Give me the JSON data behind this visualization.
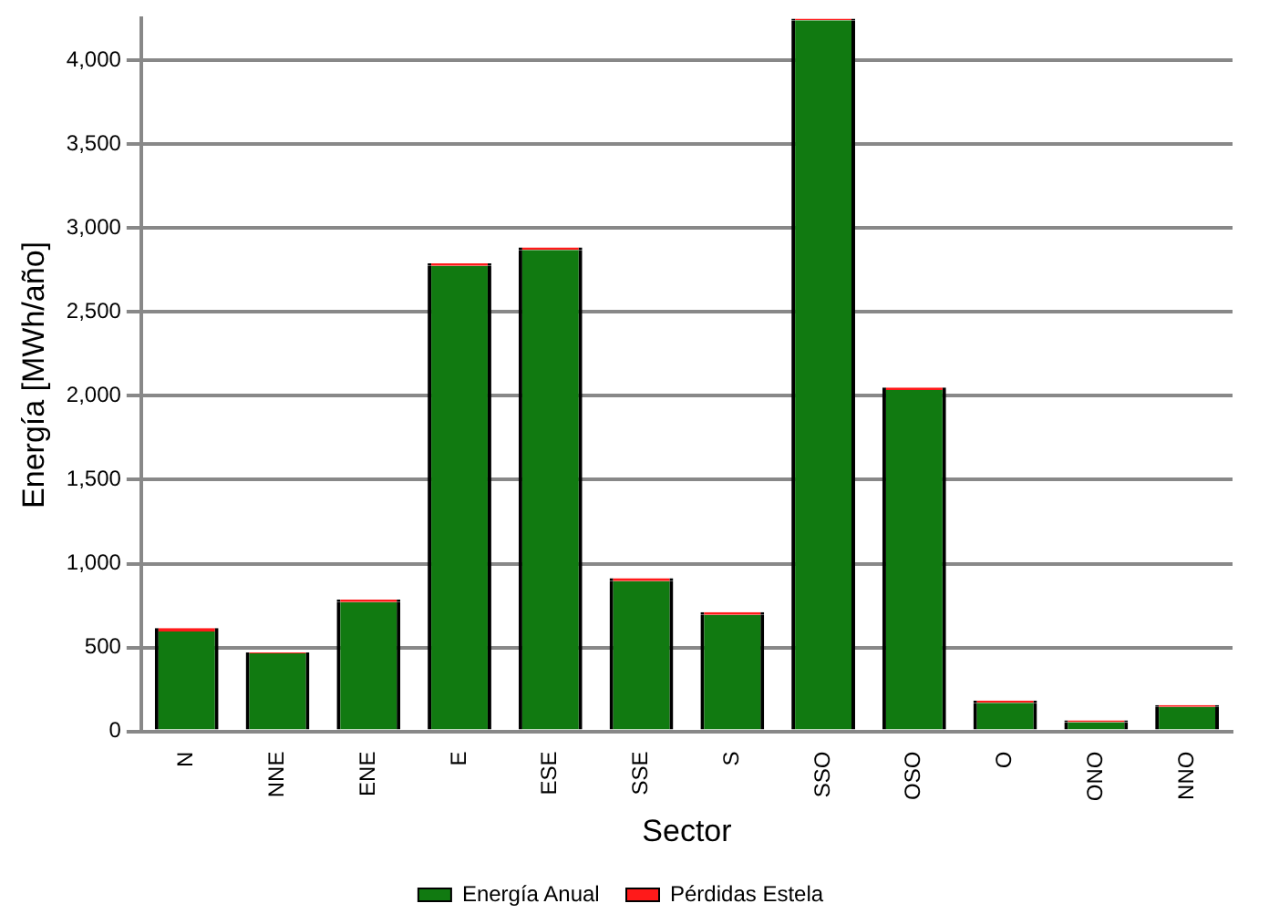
{
  "chart_data": {
    "type": "bar",
    "stacked": true,
    "xlabel": "Sector",
    "ylabel": "Energía [MWh/año]",
    "categories": [
      "N",
      "NNE",
      "ENE",
      "E",
      "ESE",
      "SSE",
      "S",
      "SSO",
      "OSO",
      "O",
      "ONO",
      "NNO"
    ],
    "series": [
      {
        "name": "Energía Anual",
        "color": "#117a11",
        "values": [
          595,
          465,
          770,
          2775,
          2870,
          895,
          695,
          4240,
          2035,
          170,
          55,
          145
        ]
      },
      {
        "name": "Pérdidas Estela",
        "color": "#ff1a1a",
        "values": [
          20,
          5,
          15,
          15,
          15,
          18,
          15,
          10,
          15,
          14,
          10,
          12
        ]
      }
    ],
    "ylim": [
      0,
      4250
    ],
    "yticks": [
      {
        "value": 0,
        "label": "0"
      },
      {
        "value": 500,
        "label": "500"
      },
      {
        "value": 1000,
        "label": "1,000"
      },
      {
        "value": 1500,
        "label": "1,500"
      },
      {
        "value": 2000,
        "label": "2,000"
      },
      {
        "value": 2500,
        "label": "2,500"
      },
      {
        "value": 3000,
        "label": "3,000"
      },
      {
        "value": 3500,
        "label": "3,500"
      },
      {
        "value": 4000,
        "label": "4,000"
      }
    ],
    "grid": "y",
    "legend": "bottom"
  }
}
